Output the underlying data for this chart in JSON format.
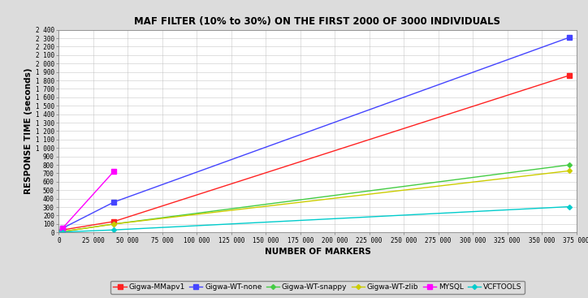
{
  "title": "MAF FILTER (10% to 30%) ON THE FIRST 2000 OF 3000 INDIVIDUALS",
  "xlabel": "NUMBER OF MARKERS",
  "ylabel": "RESPONSE TIME (seconds)",
  "background_color": "#dcdcdc",
  "plot_background": "#ffffff",
  "series": [
    {
      "label": "Gigwa-MMapv1",
      "color": "#ff2222",
      "marker": "s",
      "markersize": 4,
      "linewidth": 1.0,
      "x": [
        0,
        2700,
        40000,
        370000
      ],
      "y": [
        0,
        30,
        130,
        1860
      ]
    },
    {
      "label": "Gigwa-WT-none",
      "color": "#4444ff",
      "marker": "s",
      "markersize": 4,
      "linewidth": 1.0,
      "x": [
        0,
        2700,
        40000,
        370000
      ],
      "y": [
        0,
        50,
        360,
        2310
      ]
    },
    {
      "label": "Gigwa-WT-snappy",
      "color": "#44cc44",
      "marker": "D",
      "markersize": 3,
      "linewidth": 1.0,
      "x": [
        0,
        2700,
        40000,
        370000
      ],
      "y": [
        0,
        10,
        100,
        800
      ]
    },
    {
      "label": "Gigwa-WT-zlib",
      "color": "#cccc00",
      "marker": "D",
      "markersize": 3,
      "linewidth": 1.0,
      "x": [
        0,
        2700,
        40000,
        370000
      ],
      "y": [
        0,
        10,
        100,
        730
      ]
    },
    {
      "label": "MYSQL",
      "color": "#ff00ff",
      "marker": "s",
      "markersize": 4,
      "linewidth": 1.0,
      "x": [
        0,
        2700,
        40000
      ],
      "y": [
        0,
        50,
        725
      ]
    },
    {
      "label": "VCFTOOLS",
      "color": "#00cccc",
      "marker": "D",
      "markersize": 3,
      "linewidth": 1.0,
      "x": [
        0,
        2700,
        40000,
        370000
      ],
      "y": [
        0,
        5,
        30,
        305
      ]
    }
  ],
  "xlim": [
    0,
    375000
  ],
  "ylim": [
    0,
    2400
  ],
  "ytick_step": 100,
  "xticks": [
    0,
    25000,
    50000,
    75000,
    100000,
    125000,
    150000,
    175000,
    200000,
    225000,
    250000,
    275000,
    300000,
    325000,
    350000,
    375000
  ],
  "figsize": [
    7.24,
    3.67
  ],
  "dpi": 100
}
